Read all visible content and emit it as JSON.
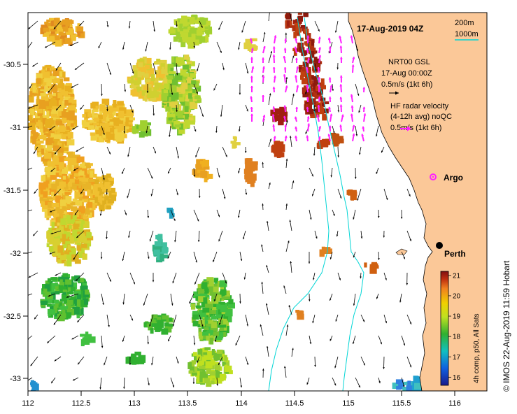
{
  "map": {
    "title": "17-Aug-2019 04Z",
    "x_ticks": [
      "112",
      "112.5",
      "113",
      "113.5",
      "114",
      "114.5",
      "115",
      "115.5",
      "116"
    ],
    "y_ticks": [
      "-30.5",
      "-31",
      "-31.5",
      "-32",
      "-32.5",
      "-33"
    ],
    "contour_legend": {
      "line1": "200m",
      "line2": "1000m",
      "line2_color": "#00d5d5"
    },
    "nrt_legend": {
      "line1": "NRT00 GSL",
      "line2": "17-Aug 00:00Z",
      "line3": "0.5m/s (1kt 6h)"
    },
    "hf_legend": {
      "line1": "HF radar velocity",
      "line2": "(4-12h avg) noQC",
      "line3": "0.5m/s (1kt 6h)",
      "color": "#ff22ff"
    },
    "argo": {
      "label": "Argo",
      "color": "#ff22ff"
    },
    "city": {
      "label": "Perth"
    },
    "colorbar": {
      "ticks": [
        "21",
        "20",
        "19",
        "18",
        "17",
        "16"
      ],
      "label": "4h comp, p50, All Sats",
      "min": 15.6,
      "max": 21.2
    },
    "credit": "© IMOS 22-Aug-2019 11:59 Hobart",
    "colors": {
      "land": "#fbc898",
      "sea": "#ffffff",
      "isobath": "#00d5d5",
      "hf_arrows": "#ff22ff"
    }
  }
}
